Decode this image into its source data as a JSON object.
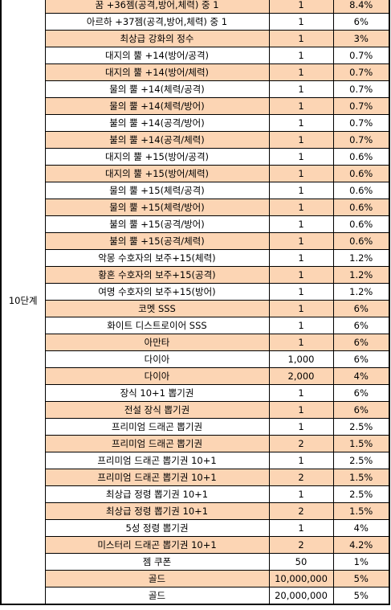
{
  "stage_label": "10단계",
  "colors": {
    "shaded_row": "#fcd5b4",
    "plain_row": "#ffffff",
    "border": "#000000"
  },
  "rows": [
    {
      "item": "꿈 +36젬(공격,방어,체력) 중 1",
      "qty": "1",
      "rate": "8.4%",
      "shade": true
    },
    {
      "item": "아르하 +37젬(공격,방어,체력) 중 1",
      "qty": "1",
      "rate": "6%",
      "shade": false
    },
    {
      "item": "최상급 강화의 정수",
      "qty": "1",
      "rate": "3%",
      "shade": true
    },
    {
      "item": "대지의 뿔 +14(방어/공격)",
      "qty": "1",
      "rate": "0.7%",
      "shade": false
    },
    {
      "item": "대지의 뿔 +14(방어/체력)",
      "qty": "1",
      "rate": "0.7%",
      "shade": true
    },
    {
      "item": "물의 뿔 +14(체력/공격)",
      "qty": "1",
      "rate": "0.7%",
      "shade": false
    },
    {
      "item": "물의 뿔 +14(체력/방어)",
      "qty": "1",
      "rate": "0.7%",
      "shade": true
    },
    {
      "item": "불의 뿔 +14(공격/방어)",
      "qty": "1",
      "rate": "0.7%",
      "shade": false
    },
    {
      "item": "불의 뿔 +14(공격/체력)",
      "qty": "1",
      "rate": "0.7%",
      "shade": true
    },
    {
      "item": "대지의 뿔 +15(방어/공격)",
      "qty": "1",
      "rate": "0.6%",
      "shade": false
    },
    {
      "item": "대지의 뿔 +15(방어/체력)",
      "qty": "1",
      "rate": "0.6%",
      "shade": true
    },
    {
      "item": "물의 뿔 +15(체력/공격)",
      "qty": "1",
      "rate": "0.6%",
      "shade": false
    },
    {
      "item": "물의 뿔 +15(체력/방어)",
      "qty": "1",
      "rate": "0.6%",
      "shade": true
    },
    {
      "item": "불의 뿔 +15(공격/방어)",
      "qty": "1",
      "rate": "0.6%",
      "shade": false
    },
    {
      "item": "불의 뿔 +15(공격/체력)",
      "qty": "1",
      "rate": "0.6%",
      "shade": true
    },
    {
      "item": "악몽 수호자의 보주+15(체력)",
      "qty": "1",
      "rate": "1.2%",
      "shade": false
    },
    {
      "item": "황혼 수호자의 보주+15(공격)",
      "qty": "1",
      "rate": "1.2%",
      "shade": true
    },
    {
      "item": "여명 수호자의 보주+15(방어)",
      "qty": "1",
      "rate": "1.2%",
      "shade": false
    },
    {
      "item": "코멧 SSS",
      "qty": "1",
      "rate": "6%",
      "shade": true
    },
    {
      "item": "화이트 디스트로이어 SSS",
      "qty": "1",
      "rate": "6%",
      "shade": false
    },
    {
      "item": "아만타",
      "qty": "1",
      "rate": "6%",
      "shade": true
    },
    {
      "item": "다이아",
      "qty": "1,000",
      "rate": "6%",
      "shade": false
    },
    {
      "item": "다이아",
      "qty": "2,000",
      "rate": "4%",
      "shade": true
    },
    {
      "item": "장식 10+1 뽑기권",
      "qty": "1",
      "rate": "6%",
      "shade": false
    },
    {
      "item": "전설 장식 뽑기권",
      "qty": "1",
      "rate": "6%",
      "shade": true
    },
    {
      "item": "프리미엄 드래곤 뽑기권",
      "qty": "1",
      "rate": "2.5%",
      "shade": false
    },
    {
      "item": "프리미엄 드래곤 뽑기권",
      "qty": "2",
      "rate": "1.5%",
      "shade": true
    },
    {
      "item": "프리미엄 드래곤 뽑기권 10+1",
      "qty": "1",
      "rate": "2.5%",
      "shade": false
    },
    {
      "item": "프리미엄 드래곤 뽑기권 10+1",
      "qty": "2",
      "rate": "1.5%",
      "shade": true
    },
    {
      "item": "최상급 정령 뽑기권 10+1",
      "qty": "1",
      "rate": "2.5%",
      "shade": false
    },
    {
      "item": "최상급 정령 뽑기권 10+1",
      "qty": "2",
      "rate": "1.5%",
      "shade": true
    },
    {
      "item": "5성 정령 뽑기권",
      "qty": "1",
      "rate": "4%",
      "shade": false
    },
    {
      "item": "미스터리 드래곤 뽑기권 10+1",
      "qty": "2",
      "rate": "4.2%",
      "shade": true
    },
    {
      "item": "젬 쿠폰",
      "qty": "50",
      "rate": "1%",
      "shade": false
    },
    {
      "item": "골드",
      "qty": "10,000,000",
      "rate": "5%",
      "shade": true
    },
    {
      "item": "골드",
      "qty": "20,000,000",
      "rate": "5%",
      "shade": false
    }
  ]
}
